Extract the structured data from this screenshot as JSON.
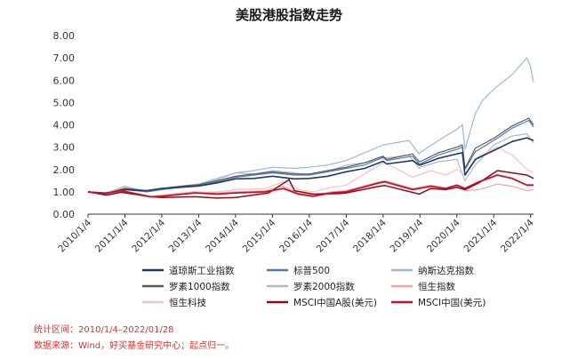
{
  "title": "美股港股指数走势",
  "notes": {
    "period": "统计区间：2010/1/4–2022/01/28",
    "source": "数据来源：Wind，好买基金研究中心；起点归一。"
  },
  "colors": {
    "dow": "#1f3a68",
    "sp500": "#4a7bbf",
    "nasdaq": "#9bb8dc",
    "russell1000": "#5a5a5a",
    "russell2000": "#b8b8b8",
    "hsi": "#f0a7a0",
    "hstech": "#f4c2c6",
    "msci_a": "#8a0e16",
    "msci_china": "#c8102e",
    "axis": "#333333"
  },
  "chart_data": {
    "type": "line",
    "title": "美股港股指数走势",
    "xlabel": "",
    "ylabel": "",
    "ylim": [
      0,
      8
    ],
    "yticks": [
      "0.00",
      "1.00",
      "2.00",
      "3.00",
      "4.00",
      "5.00",
      "6.00",
      "7.00",
      "8.00"
    ],
    "xticks": [
      "2010/1/4",
      "2011/1/4",
      "2012/1/4",
      "2013/1/4",
      "2014/1/4",
      "2015/1/4",
      "2016/1/4",
      "2017/1/4",
      "2018/1/4",
      "2019/1/4",
      "2020/1/4",
      "2021/1/4",
      "2022/1/4"
    ],
    "x_start": 2010.0,
    "x_end": 2022.08,
    "grid": false,
    "legend_position": "bottom",
    "series": [
      {
        "key": "dow",
        "name": "道琼斯工业指数",
        "color": "#1f3a68",
        "width": 1.6,
        "points": [
          [
            2010.0,
            1.0
          ],
          [
            2010.5,
            0.94
          ],
          [
            2011.0,
            1.1
          ],
          [
            2011.6,
            1.05
          ],
          [
            2012.0,
            1.15
          ],
          [
            2012.5,
            1.2
          ],
          [
            2013.0,
            1.26
          ],
          [
            2013.5,
            1.4
          ],
          [
            2014.0,
            1.58
          ],
          [
            2014.5,
            1.6
          ],
          [
            2015.0,
            1.7
          ],
          [
            2015.6,
            1.58
          ],
          [
            2016.0,
            1.6
          ],
          [
            2016.5,
            1.7
          ],
          [
            2017.0,
            1.9
          ],
          [
            2017.5,
            2.05
          ],
          [
            2018.0,
            2.37
          ],
          [
            2018.1,
            2.25
          ],
          [
            2018.8,
            2.4
          ],
          [
            2018.98,
            2.2
          ],
          [
            2019.0,
            2.2
          ],
          [
            2019.5,
            2.5
          ],
          [
            2020.0,
            2.7
          ],
          [
            2020.15,
            2.75
          ],
          [
            2020.22,
            1.75
          ],
          [
            2020.5,
            2.45
          ],
          [
            2021.0,
            2.85
          ],
          [
            2021.5,
            3.25
          ],
          [
            2021.9,
            3.42
          ],
          [
            2022.08,
            3.3
          ]
        ]
      },
      {
        "key": "sp500",
        "name": "标普500",
        "color": "#4a7bbf",
        "width": 1.2,
        "points": [
          [
            2010.0,
            1.0
          ],
          [
            2010.5,
            0.92
          ],
          [
            2011.0,
            1.1
          ],
          [
            2011.6,
            1.0
          ],
          [
            2012.0,
            1.1
          ],
          [
            2012.5,
            1.2
          ],
          [
            2013.0,
            1.28
          ],
          [
            2013.5,
            1.45
          ],
          [
            2014.0,
            1.65
          ],
          [
            2014.5,
            1.75
          ],
          [
            2015.0,
            1.85
          ],
          [
            2015.6,
            1.75
          ],
          [
            2016.0,
            1.75
          ],
          [
            2016.5,
            1.9
          ],
          [
            2017.0,
            2.05
          ],
          [
            2017.5,
            2.2
          ],
          [
            2018.0,
            2.55
          ],
          [
            2018.1,
            2.4
          ],
          [
            2018.8,
            2.6
          ],
          [
            2018.98,
            2.25
          ],
          [
            2019.0,
            2.25
          ],
          [
            2019.5,
            2.65
          ],
          [
            2020.0,
            2.9
          ],
          [
            2020.15,
            3.0
          ],
          [
            2020.22,
            2.0
          ],
          [
            2020.5,
            2.8
          ],
          [
            2021.0,
            3.3
          ],
          [
            2021.5,
            3.85
          ],
          [
            2021.95,
            4.2
          ],
          [
            2022.08,
            3.9
          ]
        ]
      },
      {
        "key": "nasdaq",
        "name": "纳斯达克指数",
        "color": "#9bb8dc",
        "width": 1.2,
        "points": [
          [
            2010.0,
            1.0
          ],
          [
            2010.5,
            0.92
          ],
          [
            2011.0,
            1.18
          ],
          [
            2011.6,
            1.05
          ],
          [
            2012.0,
            1.15
          ],
          [
            2012.5,
            1.25
          ],
          [
            2013.0,
            1.35
          ],
          [
            2013.5,
            1.6
          ],
          [
            2014.0,
            1.85
          ],
          [
            2014.5,
            1.95
          ],
          [
            2015.0,
            2.1
          ],
          [
            2015.6,
            2.05
          ],
          [
            2016.0,
            2.1
          ],
          [
            2016.5,
            2.2
          ],
          [
            2017.0,
            2.4
          ],
          [
            2017.5,
            2.75
          ],
          [
            2018.0,
            3.1
          ],
          [
            2018.7,
            3.3
          ],
          [
            2018.98,
            2.7
          ],
          [
            2019.0,
            2.75
          ],
          [
            2019.5,
            3.3
          ],
          [
            2020.0,
            3.8
          ],
          [
            2020.15,
            4.0
          ],
          [
            2020.22,
            2.9
          ],
          [
            2020.5,
            4.5
          ],
          [
            2020.7,
            5.1
          ],
          [
            2021.0,
            5.6
          ],
          [
            2021.5,
            6.25
          ],
          [
            2021.9,
            7.0
          ],
          [
            2022.0,
            6.6
          ],
          [
            2022.08,
            5.9
          ]
        ]
      },
      {
        "key": "russell1000",
        "name": "罗素1000指数",
        "color": "#5a5a5a",
        "width": 1.2,
        "points": [
          [
            2010.0,
            1.0
          ],
          [
            2010.5,
            0.93
          ],
          [
            2011.0,
            1.15
          ],
          [
            2011.6,
            1.05
          ],
          [
            2012.0,
            1.15
          ],
          [
            2012.5,
            1.25
          ],
          [
            2013.0,
            1.32
          ],
          [
            2013.5,
            1.5
          ],
          [
            2014.0,
            1.7
          ],
          [
            2014.5,
            1.8
          ],
          [
            2015.0,
            1.9
          ],
          [
            2015.6,
            1.8
          ],
          [
            2016.0,
            1.8
          ],
          [
            2016.5,
            1.95
          ],
          [
            2017.0,
            2.1
          ],
          [
            2017.5,
            2.3
          ],
          [
            2018.0,
            2.6
          ],
          [
            2018.1,
            2.45
          ],
          [
            2018.8,
            2.7
          ],
          [
            2018.98,
            2.35
          ],
          [
            2019.0,
            2.35
          ],
          [
            2019.5,
            2.75
          ],
          [
            2020.0,
            3.0
          ],
          [
            2020.15,
            3.1
          ],
          [
            2020.22,
            2.05
          ],
          [
            2020.5,
            2.95
          ],
          [
            2021.0,
            3.4
          ],
          [
            2021.5,
            3.95
          ],
          [
            2021.95,
            4.3
          ],
          [
            2022.08,
            4.0
          ]
        ]
      },
      {
        "key": "russell2000",
        "name": "罗素2000指数",
        "color": "#b8b8b8",
        "width": 1.2,
        "points": [
          [
            2010.0,
            1.0
          ],
          [
            2010.5,
            0.95
          ],
          [
            2011.0,
            1.25
          ],
          [
            2011.6,
            1.0
          ],
          [
            2012.0,
            1.15
          ],
          [
            2012.5,
            1.25
          ],
          [
            2013.0,
            1.35
          ],
          [
            2013.5,
            1.55
          ],
          [
            2014.0,
            1.85
          ],
          [
            2014.5,
            1.8
          ],
          [
            2015.0,
            1.95
          ],
          [
            2015.6,
            1.85
          ],
          [
            2016.0,
            1.75
          ],
          [
            2016.5,
            1.9
          ],
          [
            2017.0,
            2.2
          ],
          [
            2017.5,
            2.3
          ],
          [
            2018.0,
            2.5
          ],
          [
            2018.7,
            2.65
          ],
          [
            2018.98,
            2.05
          ],
          [
            2019.0,
            2.1
          ],
          [
            2019.5,
            2.35
          ],
          [
            2020.0,
            2.45
          ],
          [
            2020.22,
            1.5
          ],
          [
            2020.5,
            2.2
          ],
          [
            2021.0,
            3.1
          ],
          [
            2021.5,
            3.5
          ],
          [
            2021.9,
            3.6
          ],
          [
            2022.08,
            3.2
          ]
        ]
      },
      {
        "key": "hsi",
        "name": "恒生指数",
        "color": "#f0a7a0",
        "width": 1.2,
        "points": [
          [
            2010.0,
            1.0
          ],
          [
            2010.4,
            0.95
          ],
          [
            2010.9,
            1.07
          ],
          [
            2011.7,
            0.78
          ],
          [
            2012.0,
            0.85
          ],
          [
            2012.9,
            1.0
          ],
          [
            2013.5,
            0.95
          ],
          [
            2014.0,
            1.0
          ],
          [
            2014.8,
            1.05
          ],
          [
            2015.3,
            1.25
          ],
          [
            2015.7,
            0.95
          ],
          [
            2016.1,
            0.85
          ],
          [
            2016.6,
            1.0
          ],
          [
            2017.0,
            1.05
          ],
          [
            2017.9,
            1.45
          ],
          [
            2018.05,
            1.5
          ],
          [
            2018.8,
            1.15
          ],
          [
            2019.3,
            1.3
          ],
          [
            2019.7,
            1.15
          ],
          [
            2020.0,
            1.25
          ],
          [
            2020.22,
            1.05
          ],
          [
            2020.6,
            1.1
          ],
          [
            2021.1,
            1.35
          ],
          [
            2021.5,
            1.25
          ],
          [
            2021.9,
            1.05
          ],
          [
            2022.08,
            1.1
          ]
        ]
      },
      {
        "key": "hstech",
        "name": "恒生科技",
        "color": "#f4c2c6",
        "width": 1.2,
        "points": [
          [
            2010.0,
            1.0
          ],
          [
            2010.5,
            0.9
          ],
          [
            2010.9,
            1.0
          ],
          [
            2011.7,
            0.75
          ],
          [
            2012.0,
            0.8
          ],
          [
            2012.9,
            0.95
          ],
          [
            2013.5,
            1.0
          ],
          [
            2014.0,
            1.1
          ],
          [
            2014.8,
            1.15
          ],
          [
            2015.3,
            1.45
          ],
          [
            2015.7,
            1.1
          ],
          [
            2016.1,
            1.0
          ],
          [
            2016.6,
            1.2
          ],
          [
            2017.0,
            1.3
          ],
          [
            2017.9,
            2.2
          ],
          [
            2018.05,
            2.3
          ],
          [
            2018.8,
            1.65
          ],
          [
            2019.3,
            1.95
          ],
          [
            2019.7,
            1.75
          ],
          [
            2020.0,
            2.0
          ],
          [
            2020.22,
            1.75
          ],
          [
            2020.6,
            2.6
          ],
          [
            2021.1,
            3.0
          ],
          [
            2021.5,
            2.65
          ],
          [
            2021.9,
            2.0
          ],
          [
            2022.08,
            1.85
          ]
        ]
      },
      {
        "key": "msci_a",
        "name": "MSCI中国A股(美元)",
        "color": "#8a0e16",
        "width": 1.5,
        "points": [
          [
            2010.0,
            1.0
          ],
          [
            2010.5,
            0.85
          ],
          [
            2010.9,
            0.98
          ],
          [
            2011.7,
            0.78
          ],
          [
            2012.0,
            0.75
          ],
          [
            2012.9,
            0.78
          ],
          [
            2013.5,
            0.72
          ],
          [
            2014.0,
            0.75
          ],
          [
            2014.9,
            0.95
          ],
          [
            2015.45,
            1.55
          ],
          [
            2015.6,
            1.05
          ],
          [
            2016.1,
            0.9
          ],
          [
            2016.8,
            0.92
          ],
          [
            2017.0,
            0.95
          ],
          [
            2017.9,
            1.25
          ],
          [
            2018.05,
            1.28
          ],
          [
            2018.98,
            0.9
          ],
          [
            2019.3,
            1.15
          ],
          [
            2019.7,
            1.1
          ],
          [
            2020.0,
            1.2
          ],
          [
            2020.22,
            1.1
          ],
          [
            2020.6,
            1.4
          ],
          [
            2021.1,
            1.95
          ],
          [
            2021.5,
            1.85
          ],
          [
            2021.9,
            1.75
          ],
          [
            2022.08,
            1.6
          ]
        ]
      },
      {
        "key": "msci_china",
        "name": "MSCI中国(美元)",
        "color": "#c8102e",
        "width": 1.8,
        "points": [
          [
            2010.0,
            1.0
          ],
          [
            2010.4,
            0.92
          ],
          [
            2010.9,
            1.05
          ],
          [
            2011.7,
            0.78
          ],
          [
            2012.0,
            0.8
          ],
          [
            2012.9,
            0.95
          ],
          [
            2013.5,
            0.9
          ],
          [
            2014.0,
            0.95
          ],
          [
            2014.8,
            1.0
          ],
          [
            2015.3,
            1.15
          ],
          [
            2015.7,
            0.9
          ],
          [
            2016.1,
            0.8
          ],
          [
            2016.6,
            0.95
          ],
          [
            2017.0,
            1.0
          ],
          [
            2017.9,
            1.4
          ],
          [
            2018.05,
            1.45
          ],
          [
            2018.8,
            1.1
          ],
          [
            2019.3,
            1.25
          ],
          [
            2019.7,
            1.15
          ],
          [
            2020.0,
            1.3
          ],
          [
            2020.22,
            1.15
          ],
          [
            2020.6,
            1.45
          ],
          [
            2021.1,
            1.75
          ],
          [
            2021.5,
            1.6
          ],
          [
            2021.9,
            1.3
          ],
          [
            2022.08,
            1.3
          ]
        ]
      }
    ]
  }
}
